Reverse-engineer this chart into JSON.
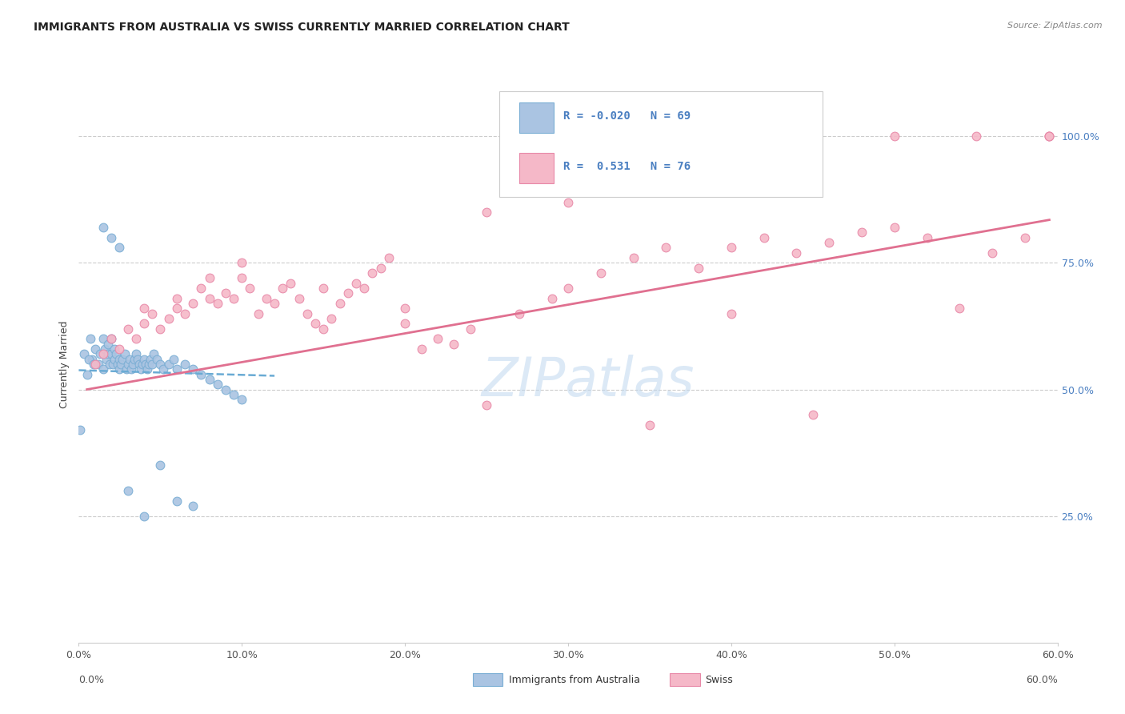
{
  "title": "IMMIGRANTS FROM AUSTRALIA VS SWISS CURRENTLY MARRIED CORRELATION CHART",
  "source": "Source: ZipAtlas.com",
  "ylabel": "Currently Married",
  "legend_label1": "Immigrants from Australia",
  "legend_label2": "Swiss",
  "R1": "-0.020",
  "N1": "69",
  "R2": "0.531",
  "N2": "76",
  "color_blue_fill": "#aac4e2",
  "color_blue_edge": "#7aaed4",
  "color_pink_fill": "#f5b8c8",
  "color_pink_edge": "#e889a8",
  "color_line_blue": "#6aabd4",
  "color_line_pink": "#e07090",
  "color_text_blue": "#4a7fc1",
  "color_grid": "#cccccc",
  "watermark_text": "ZIPatlas",
  "watermark_color": "#c0d8ef",
  "background_color": "#ffffff",
  "xlim": [
    0.0,
    0.6
  ],
  "ylim": [
    0.0,
    1.1
  ],
  "ytick_vals": [
    0.25,
    0.5,
    0.75,
    1.0
  ],
  "ytick_labels": [
    "25.0%",
    "50.0%",
    "75.0%",
    "100.0%"
  ],
  "xtick_vals": [
    0.0,
    0.1,
    0.2,
    0.3,
    0.4,
    0.5,
    0.6
  ],
  "blue_line_x": [
    0.0,
    0.12
  ],
  "blue_line_y": [
    0.538,
    0.527
  ],
  "pink_line_x": [
    0.005,
    0.595
  ],
  "pink_line_y": [
    0.5,
    0.835
  ],
  "blue_scatter_x": [
    0.005,
    0.008,
    0.01,
    0.012,
    0.013,
    0.015,
    0.015,
    0.016,
    0.017,
    0.018,
    0.018,
    0.019,
    0.02,
    0.02,
    0.021,
    0.022,
    0.022,
    0.023,
    0.024,
    0.025,
    0.025,
    0.026,
    0.027,
    0.028,
    0.029,
    0.03,
    0.031,
    0.032,
    0.033,
    0.034,
    0.035,
    0.036,
    0.037,
    0.038,
    0.039,
    0.04,
    0.041,
    0.042,
    0.043,
    0.044,
    0.045,
    0.046,
    0.048,
    0.05,
    0.052,
    0.055,
    0.058,
    0.06,
    0.065,
    0.07,
    0.075,
    0.08,
    0.085,
    0.09,
    0.095,
    0.1,
    0.05,
    0.03,
    0.04,
    0.06,
    0.07,
    0.015,
    0.02,
    0.025,
    0.007,
    0.003,
    0.006,
    0.009,
    0.001
  ],
  "blue_scatter_y": [
    0.53,
    0.56,
    0.58,
    0.55,
    0.57,
    0.6,
    0.54,
    0.58,
    0.56,
    0.57,
    0.59,
    0.55,
    0.6,
    0.57,
    0.55,
    0.56,
    0.58,
    0.57,
    0.55,
    0.56,
    0.54,
    0.55,
    0.56,
    0.57,
    0.54,
    0.55,
    0.56,
    0.54,
    0.55,
    0.56,
    0.57,
    0.56,
    0.55,
    0.54,
    0.55,
    0.56,
    0.55,
    0.54,
    0.55,
    0.56,
    0.55,
    0.57,
    0.56,
    0.55,
    0.54,
    0.55,
    0.56,
    0.54,
    0.55,
    0.54,
    0.53,
    0.52,
    0.51,
    0.5,
    0.49,
    0.48,
    0.35,
    0.3,
    0.25,
    0.28,
    0.27,
    0.82,
    0.8,
    0.78,
    0.6,
    0.57,
    0.56,
    0.55,
    0.42
  ],
  "pink_scatter_x": [
    0.01,
    0.015,
    0.02,
    0.025,
    0.03,
    0.035,
    0.04,
    0.045,
    0.05,
    0.055,
    0.06,
    0.065,
    0.07,
    0.075,
    0.08,
    0.085,
    0.09,
    0.095,
    0.1,
    0.105,
    0.11,
    0.115,
    0.12,
    0.125,
    0.13,
    0.135,
    0.14,
    0.145,
    0.15,
    0.155,
    0.16,
    0.165,
    0.17,
    0.175,
    0.18,
    0.185,
    0.19,
    0.2,
    0.21,
    0.22,
    0.23,
    0.24,
    0.25,
    0.27,
    0.29,
    0.3,
    0.32,
    0.34,
    0.36,
    0.38,
    0.4,
    0.42,
    0.44,
    0.46,
    0.48,
    0.5,
    0.52,
    0.54,
    0.56,
    0.58,
    0.595,
    0.595,
    0.595,
    0.5,
    0.55,
    0.3,
    0.4,
    0.25,
    0.35,
    0.45,
    0.2,
    0.15,
    0.1,
    0.08,
    0.06,
    0.04
  ],
  "pink_scatter_y": [
    0.55,
    0.57,
    0.6,
    0.58,
    0.62,
    0.6,
    0.63,
    0.65,
    0.62,
    0.64,
    0.66,
    0.65,
    0.67,
    0.7,
    0.68,
    0.67,
    0.69,
    0.68,
    0.72,
    0.7,
    0.65,
    0.68,
    0.67,
    0.7,
    0.71,
    0.68,
    0.65,
    0.63,
    0.62,
    0.64,
    0.67,
    0.69,
    0.71,
    0.7,
    0.73,
    0.74,
    0.76,
    0.66,
    0.58,
    0.6,
    0.59,
    0.62,
    0.47,
    0.65,
    0.68,
    0.7,
    0.73,
    0.76,
    0.78,
    0.74,
    0.78,
    0.8,
    0.77,
    0.79,
    0.81,
    0.82,
    0.8,
    0.66,
    0.77,
    0.8,
    1.0,
    1.0,
    1.0,
    1.0,
    1.0,
    0.87,
    0.65,
    0.85,
    0.43,
    0.45,
    0.63,
    0.7,
    0.75,
    0.72,
    0.68,
    0.66
  ]
}
